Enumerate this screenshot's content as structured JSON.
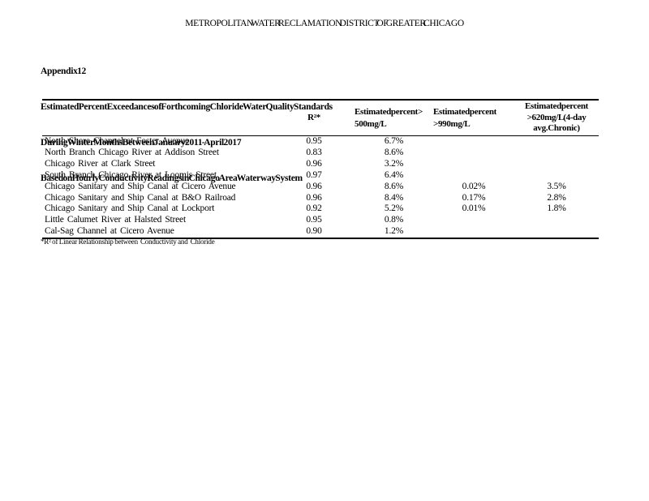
{
  "page": {
    "title": "METROPOLITAN WATER RECLAMATION DISTRICT OF GREATER CHICAGO"
  },
  "heading": {
    "appendix": "Appendix 12",
    "line1": "Estimated Percent Exceedances of Forthcoming Chloride Water Quality Standards",
    "line2": "During Winter Months Between January 2011 - April 2017",
    "line3": "Based on Hourly Conductivity Readings in Chicago Area Waterway System"
  },
  "table": {
    "columns": {
      "station": "",
      "r2": "R²*",
      "c500_l1": "Estimated percent >",
      "c500_l2": "500 mg/L",
      "c990_l1": "Estimated percent",
      "c990_l2": ">990 mg/L",
      "c620_l1": "Estimated percent",
      "c620_l2": ">620 mg/L  (4-day",
      "c620_l3": "avg. Chronic)"
    },
    "rows": [
      {
        "station": "North Shore Channel at Foster Avenue",
        "r2": "0.95",
        "p500": "6.7%",
        "p990": "",
        "p620": ""
      },
      {
        "station": "North Branch Chicago River at Addison Street",
        "r2": "0.83",
        "p500": "8.6%",
        "p990": "",
        "p620": ""
      },
      {
        "station": "Chicago River at Clark Street",
        "r2": "0.96",
        "p500": "3.2%",
        "p990": "",
        "p620": ""
      },
      {
        "station": "South Branch Chicago River at Loomis Street",
        "r2": "0.97",
        "p500": "6.4%",
        "p990": "",
        "p620": ""
      },
      {
        "station": "Chicago Sanitary and Ship Canal at Cicero Avenue",
        "r2": "0.96",
        "p500": "8.6%",
        "p990": "0.02%",
        "p620": "3.5%"
      },
      {
        "station": "Chicago Sanitary and Ship Canal at B&O Railroad",
        "r2": "0.96",
        "p500": "8.4%",
        "p990": "0.17%",
        "p620": "2.8%"
      },
      {
        "station": "Chicago Sanitary and Ship Canal at Lockport",
        "r2": "0.92",
        "p500": "5.2%",
        "p990": "0.01%",
        "p620": "1.8%"
      },
      {
        "station": "Little Calumet River at Halsted Street",
        "r2": "0.95",
        "p500": "0.8%",
        "p990": "",
        "p620": ""
      },
      {
        "station": "Cal-Sag Channel at Cicero Avenue",
        "r2": "0.90",
        "p500": "1.2%",
        "p990": "",
        "p620": ""
      }
    ]
  },
  "footnote": {
    "text": "*R² of Linear Relationship between  Conductivity and  Chloride"
  }
}
